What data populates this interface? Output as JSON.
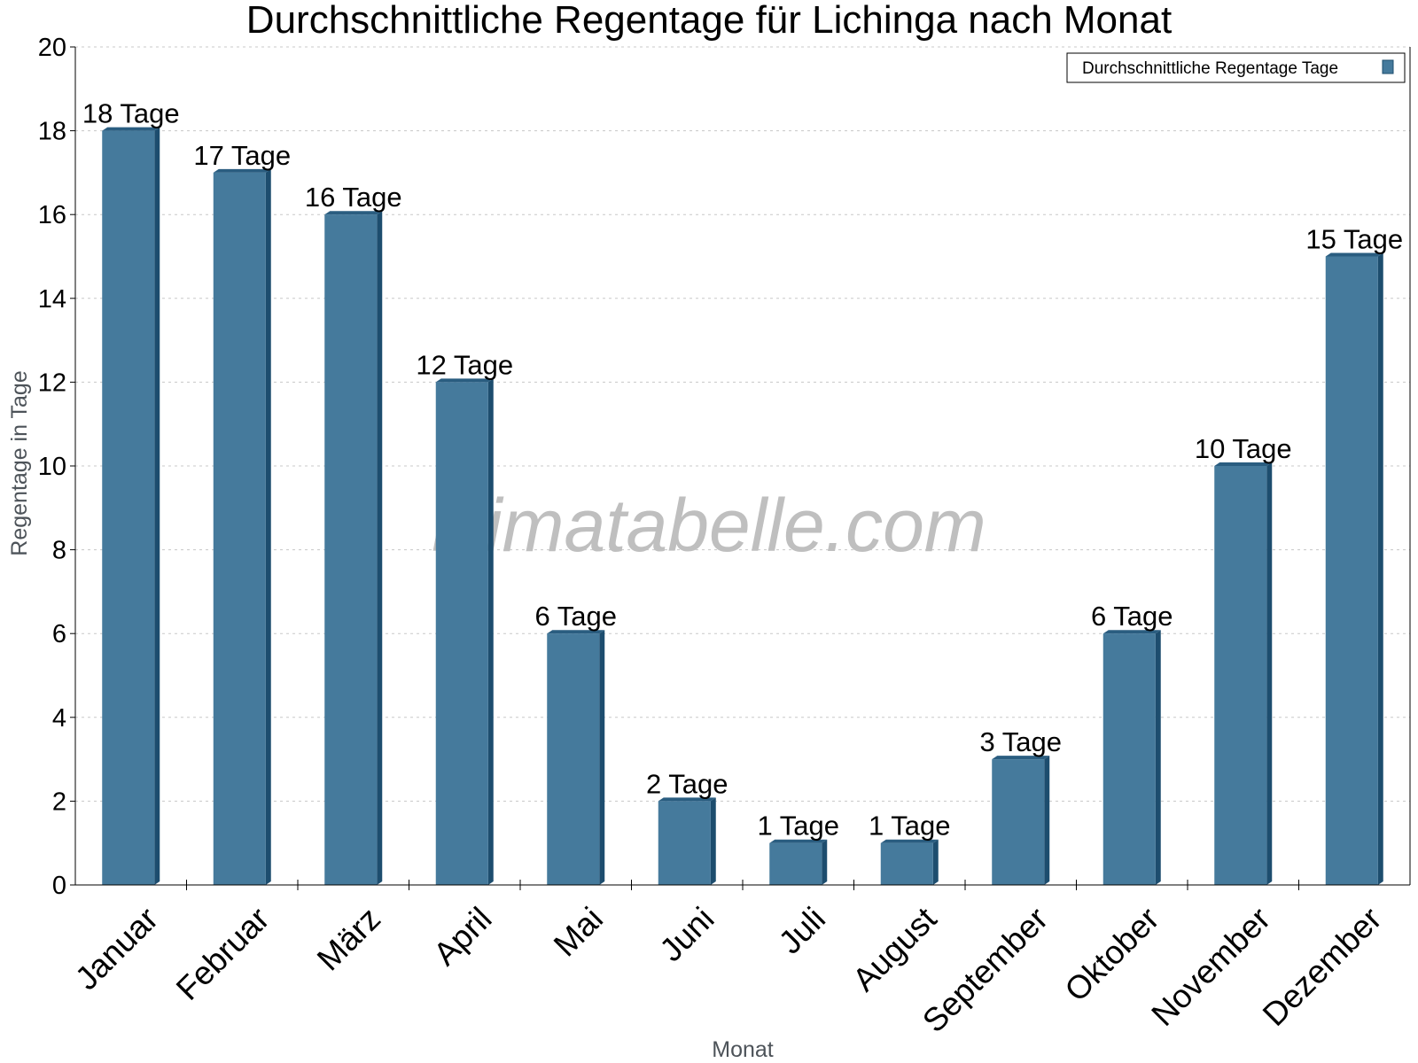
{
  "chart_data": {
    "type": "bar",
    "title": "Durchschnittliche Regentage für Lichinga nach Monat",
    "xlabel": "Monat",
    "ylabel": "Regentage in Tage",
    "categories": [
      "Januar",
      "Februar",
      "März",
      "April",
      "Mai",
      "Juni",
      "Juli",
      "August",
      "September",
      "Oktober",
      "November",
      "Dezember"
    ],
    "series": [
      {
        "name": "Durchschnittliche Regentage Tage",
        "values": [
          18,
          17,
          16,
          12,
          6,
          2,
          1,
          1,
          3,
          6,
          10,
          15
        ],
        "data_labels": [
          "18 Tage",
          "17 Tage",
          "16 Tage",
          "12 Tage",
          "6 Tage",
          "2 Tage",
          "1 Tage",
          "1 Tage",
          "3 Tage",
          "6 Tage",
          "10 Tage",
          "15 Tage"
        ]
      }
    ],
    "ylim": [
      0,
      20
    ],
    "yticks": [
      0,
      2,
      4,
      6,
      8,
      10,
      12,
      14,
      16,
      18,
      20
    ],
    "grid": true,
    "legend_position": "top-right",
    "colors": {
      "bar_front": "#457a9c",
      "bar_side": "#1d4d6e",
      "bar_top": "#2a5d80"
    }
  },
  "watermark": "klimatabelle.com"
}
